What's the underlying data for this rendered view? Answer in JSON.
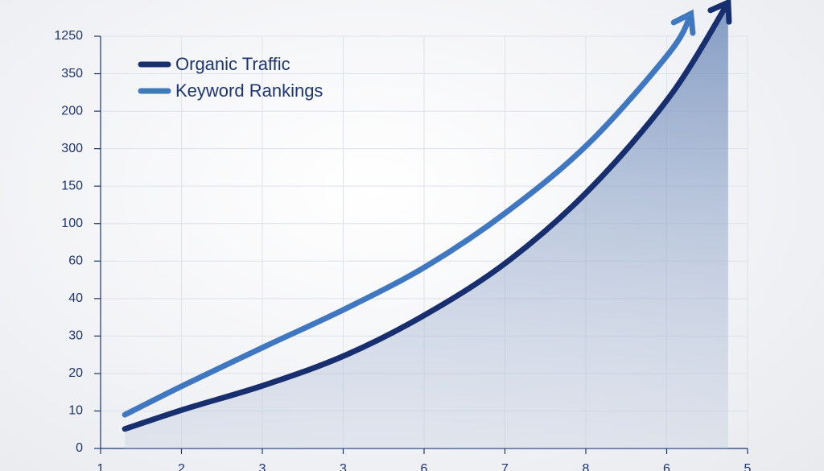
{
  "chart_data": {
    "type": "line",
    "xlim": [
      0,
      8
    ],
    "xticks": [
      {
        "value": 0,
        "label": "1"
      },
      {
        "value": 1,
        "label": "2"
      },
      {
        "value": 2,
        "label": "3"
      },
      {
        "value": 3,
        "label": "3"
      },
      {
        "value": 4,
        "label": "6"
      },
      {
        "value": 5,
        "label": "7"
      },
      {
        "value": 6,
        "label": "8"
      },
      {
        "value": 7,
        "label": "6"
      },
      {
        "value": 8,
        "label": "5"
      }
    ],
    "ylim": [
      0,
      11
    ],
    "yticks": [
      {
        "value": 0,
        "label": "0"
      },
      {
        "value": 1,
        "label": "10"
      },
      {
        "value": 2,
        "label": "20"
      },
      {
        "value": 3,
        "label": "30"
      },
      {
        "value": 4,
        "label": "40"
      },
      {
        "value": 5,
        "label": "60"
      },
      {
        "value": 6,
        "label": "100"
      },
      {
        "value": 7,
        "label": "150"
      },
      {
        "value": 8,
        "label": "300"
      },
      {
        "value": 9,
        "label": "200"
      },
      {
        "value": 10,
        "label": "350"
      },
      {
        "value": 11,
        "label": "1250"
      }
    ],
    "grid": true,
    "legend": "upper-left",
    "series": [
      {
        "name": "Organic Traffic",
        "color": "#172f6e",
        "area": true,
        "x": [
          0.3,
          1.04,
          2.04,
          3.04,
          4.04,
          5.04,
          6.04,
          7.04,
          7.76
        ],
        "values": [
          0.52,
          1.05,
          1.7,
          2.5,
          3.6,
          5.0,
          6.9,
          9.4,
          11.9
        ]
      },
      {
        "name": "Keyword Rankings",
        "color": "#3f78c0",
        "area": false,
        "x": [
          0.3,
          1.04,
          2.04,
          3.04,
          4.04,
          5.04,
          6.04,
          7.04,
          7.3
        ],
        "values": [
          0.9,
          1.7,
          2.73,
          3.74,
          4.88,
          6.34,
          8.15,
          10.58,
          11.6
        ]
      }
    ]
  }
}
